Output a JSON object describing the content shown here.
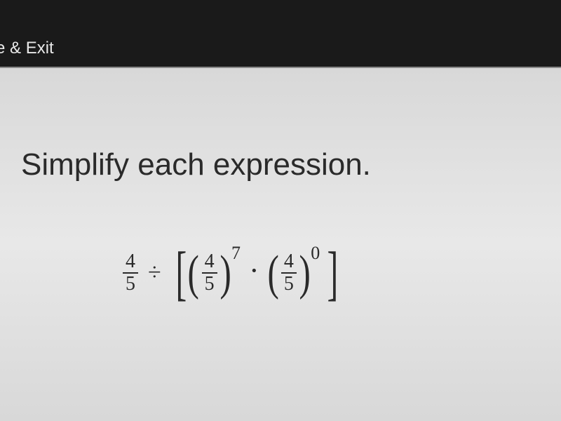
{
  "topbar": {
    "save_exit": "ve & Exit"
  },
  "instruction": {
    "text": "Simplify each expression."
  },
  "expression": {
    "outer_fraction": {
      "numerator": "4",
      "denominator": "5"
    },
    "divide_symbol": "÷",
    "left_bracket": "[",
    "right_bracket": "]",
    "term1": {
      "left_paren": "(",
      "right_paren": ")",
      "fraction": {
        "numerator": "4",
        "denominator": "5"
      },
      "exponent": "7"
    },
    "multiply_symbol": "·",
    "term2": {
      "left_paren": "(",
      "right_paren": ")",
      "fraction": {
        "numerator": "4",
        "denominator": "5"
      },
      "exponent": "0"
    }
  },
  "styling": {
    "top_bar_bg": "#1a1a1a",
    "top_bar_text_color": "#e8e8e8",
    "content_bg": "#e0e0e0",
    "text_color": "#2a2a2a",
    "instruction_fontsize": 44,
    "fraction_fontsize": 28,
    "bracket_fontsize": 86,
    "paren_fontsize": 70,
    "exponent_fontsize": 26
  }
}
